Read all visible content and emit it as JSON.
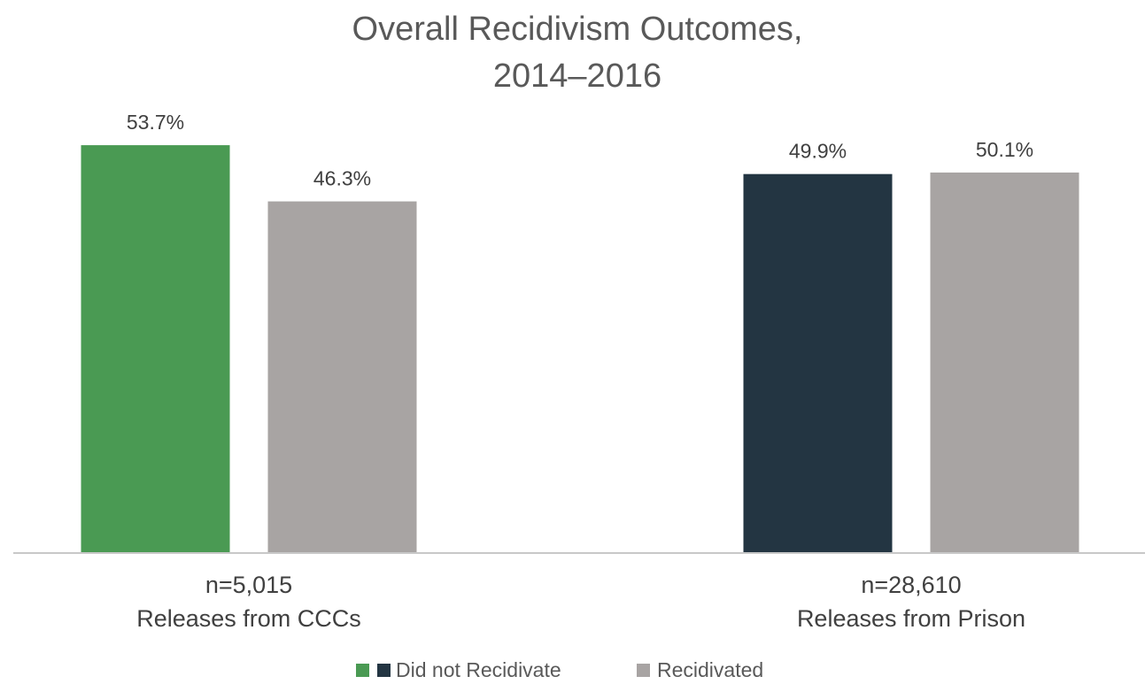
{
  "chart_data": {
    "type": "bar",
    "title": [
      "Overall Recidivism Outcomes,",
      "2014–2016"
    ],
    "xlabel": "",
    "ylabel": "",
    "ylim": [
      0,
      60
    ],
    "grid": false,
    "legend_position": "bottom",
    "categories": [
      {
        "n_label": "n=5,015",
        "label": "Releases from CCCs"
      },
      {
        "n_label": "n=28,610",
        "label": "Releases from Prison"
      }
    ],
    "series": [
      {
        "name": "Did not Recidivate",
        "values": [
          53.7,
          49.9
        ],
        "labels": [
          "53.7%",
          "49.9%"
        ],
        "colors": [
          "#4a9a53",
          "#233542"
        ]
      },
      {
        "name": "Recidivated",
        "values": [
          46.3,
          50.1
        ],
        "labels": [
          "46.3%",
          "50.1%"
        ],
        "colors": [
          "#a8a4a3",
          "#a8a4a3"
        ]
      }
    ],
    "colors": {
      "ccc_did_not_recidivate": "#4a9a53",
      "prison_did_not_recidivate": "#233542",
      "recidivated": "#a8a4a3",
      "axis": "#c8c8c8"
    }
  }
}
